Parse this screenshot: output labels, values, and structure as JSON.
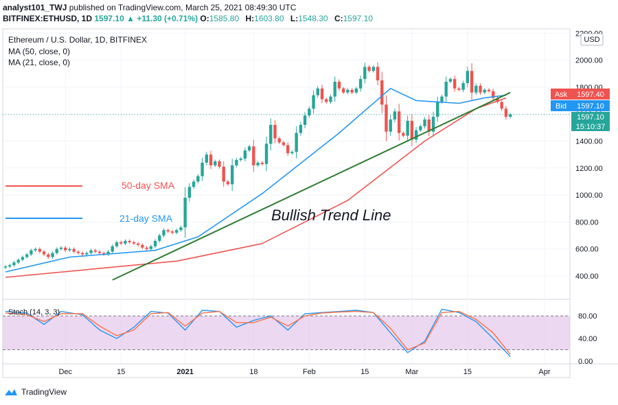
{
  "header": {
    "publisher": "analyst101_TWJ",
    "published_text": "published on TradingView.com, March 25, 2021 08:49:30 UTC",
    "symbol": "BITFINEX:ETHUSD, 1D",
    "last": "1597.10",
    "change": "+11.30 (+0.71%)",
    "open_label": "O:",
    "open": "1585.80",
    "high_label": "H:",
    "high": "1603.80",
    "low_label": "L:",
    "low": "1548.30",
    "close_label": "C:",
    "close": "1597.10"
  },
  "legend": {
    "title": "Ethereum / U.S. Dollar, 1D, BITFINEX",
    "ma50": "MA (50, close, 0)",
    "ma21": "MA (21, close, 0)",
    "currency": "USD"
  },
  "annotations": {
    "sma50": "50-day SMA",
    "sma21": "21-day SMA",
    "trend": "Bullish Trend Line"
  },
  "price_tags": {
    "ask_label": "Ask",
    "ask": "1597.40",
    "bid_label": "Bid",
    "bid": "1597.10",
    "last": "1597.10",
    "countdown": "15:10:37"
  },
  "stoch_label": "Stoch (14, 3, 3)",
  "footer": {
    "brand": "TradingView"
  },
  "colors": {
    "up": "#26a69a",
    "down": "#ef5350",
    "ma50": "#ef5350",
    "ma21": "#2196f3",
    "trend": "#2e7d32",
    "stoch_bg": "#e1bee7",
    "stoch_k": "#2196f3",
    "stoch_d": "#ff7043",
    "ask": "#ef5350",
    "bid": "#2196f3",
    "countdown": "#455a64"
  },
  "chart_data": [
    {
      "type": "candlestick",
      "title": "Ethereum / U.S. Dollar, 1D, BITFINEX",
      "x_ticks": [
        "Dec",
        "15",
        "2021",
        "18",
        "Feb",
        "15",
        "Mar",
        "15",
        "Apr"
      ],
      "y_ticks": [
        "400.00",
        "600.00",
        "800.00",
        "1000.00",
        "1200.00",
        "1400.00",
        "1600.00",
        "1800.00",
        "2000.00",
        "2200.00"
      ],
      "ylim": [
        220,
        2220
      ],
      "closes": [
        470,
        480,
        500,
        520,
        540,
        560,
        590,
        600,
        580,
        560,
        540,
        570,
        600,
        610,
        590,
        600,
        580,
        570,
        560,
        570,
        590,
        580,
        570,
        560,
        580,
        620,
        650,
        640,
        660,
        650,
        640,
        630,
        610,
        600,
        620,
        660,
        700,
        740,
        730,
        720,
        740,
        760,
        980,
        1060,
        1100,
        1140,
        1240,
        1300,
        1220,
        1250,
        1210,
        1100,
        1080,
        1220,
        1260,
        1270,
        1330,
        1360,
        1220,
        1240,
        1230,
        1380,
        1520,
        1420,
        1390,
        1370,
        1310,
        1320,
        1460,
        1520,
        1590,
        1640,
        1740,
        1790,
        1710,
        1690,
        1730,
        1840,
        1790,
        1760,
        1780,
        1760,
        1790,
        1860,
        1950,
        1920,
        1950,
        1850,
        1670,
        1470,
        1560,
        1620,
        1460,
        1440,
        1550,
        1410,
        1480,
        1510,
        1560,
        1470,
        1580,
        1690,
        1730,
        1840,
        1860,
        1790,
        1780,
        1830,
        1920,
        1760,
        1810,
        1760,
        1780,
        1770,
        1720,
        1690,
        1640,
        1580,
        1597.1
      ],
      "series": [
        {
          "name": "MA (50, close, 0)",
          "values_at": [
            [
              0,
              390
            ],
            [
              20,
              450
            ],
            [
              40,
              510
            ],
            [
              60,
              640
            ],
            [
              80,
              960
            ],
            [
              98,
              1400
            ],
            [
              110,
              1640
            ],
            [
              117,
              1720
            ]
          ]
        },
        {
          "name": "MA (21, close, 0)",
          "values_at": [
            [
              0,
              430
            ],
            [
              15,
              540
            ],
            [
              35,
              590
            ],
            [
              45,
              690
            ],
            [
              60,
              1010
            ],
            [
              78,
              1460
            ],
            [
              90,
              1790
            ],
            [
              96,
              1700
            ],
            [
              106,
              1680
            ],
            [
              112,
              1720
            ],
            [
              117,
              1740
            ]
          ]
        },
        {
          "name": "Bullish Trend Line",
          "values_at": [
            [
              25,
              370
            ],
            [
              118,
              1760
            ]
          ]
        }
      ]
    },
    {
      "type": "line",
      "title": "Stoch (14, 3, 3)",
      "y_ticks": [
        "0.00",
        "40.00",
        "80.00"
      ],
      "ylim": [
        -6,
        100
      ],
      "bands": [
        20,
        80
      ],
      "series": [
        {
          "name": "%K",
          "values_at": [
            [
              0,
              88
            ],
            [
              5,
              85
            ],
            [
              9,
              65
            ],
            [
              13,
              88
            ],
            [
              18,
              82
            ],
            [
              22,
              55
            ],
            [
              26,
              40
            ],
            [
              30,
              60
            ],
            [
              34,
              88
            ],
            [
              38,
              85
            ],
            [
              42,
              55
            ],
            [
              46,
              90
            ],
            [
              50,
              88
            ],
            [
              54,
              60
            ],
            [
              58,
              72
            ],
            [
              62,
              80
            ],
            [
              66,
              55
            ],
            [
              70,
              84
            ],
            [
              74,
              86
            ],
            [
              78,
              88
            ],
            [
              82,
              90
            ],
            [
              86,
              86
            ],
            [
              90,
              50
            ],
            [
              94,
              15
            ],
            [
              98,
              35
            ],
            [
              102,
              92
            ],
            [
              106,
              86
            ],
            [
              110,
              70
            ],
            [
              114,
              40
            ],
            [
              118,
              8
            ]
          ]
        },
        {
          "name": "%D",
          "values_at": [
            [
              0,
              85
            ],
            [
              5,
              82
            ],
            [
              9,
              70
            ],
            [
              13,
              84
            ],
            [
              18,
              84
            ],
            [
              22,
              62
            ],
            [
              26,
              45
            ],
            [
              30,
              55
            ],
            [
              34,
              84
            ],
            [
              38,
              86
            ],
            [
              42,
              62
            ],
            [
              46,
              85
            ],
            [
              50,
              88
            ],
            [
              54,
              68
            ],
            [
              58,
              68
            ],
            [
              62,
              78
            ],
            [
              66,
              62
            ],
            [
              70,
              80
            ],
            [
              74,
              85
            ],
            [
              78,
              87
            ],
            [
              82,
              88
            ],
            [
              86,
              86
            ],
            [
              90,
              58
            ],
            [
              94,
              20
            ],
            [
              98,
              32
            ],
            [
              102,
              86
            ],
            [
              106,
              88
            ],
            [
              110,
              74
            ],
            [
              114,
              50
            ],
            [
              118,
              12
            ]
          ]
        }
      ]
    }
  ]
}
